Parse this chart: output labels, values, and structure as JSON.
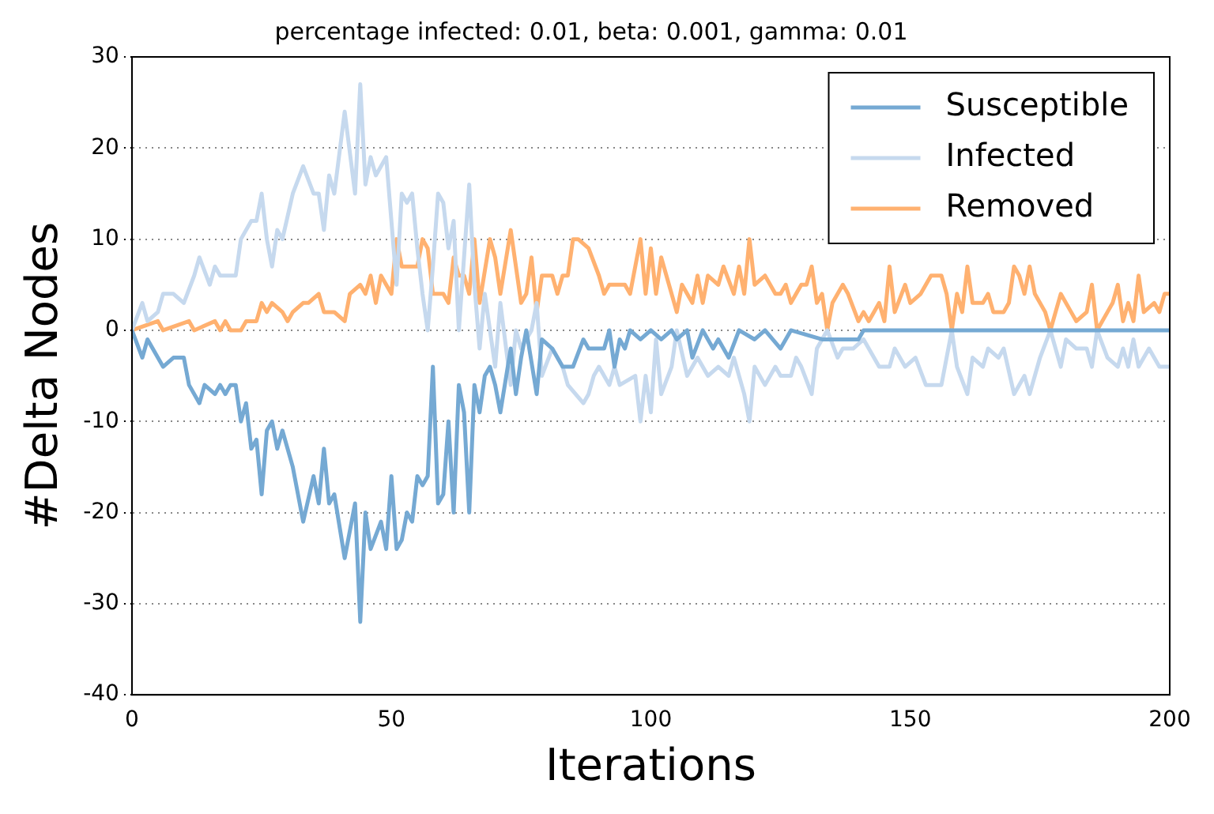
{
  "chart_data": {
    "type": "line",
    "title": "percentage infected: 0.01, beta: 0.001, gamma: 0.01",
    "xlabel": "Iterations",
    "ylabel": "#Delta Nodes",
    "xlim": [
      0,
      200
    ],
    "xticks": [
      0,
      50,
      100,
      150,
      200
    ],
    "ylim": [
      -40,
      30
    ],
    "yticks": [
      -40,
      -30,
      -20,
      -10,
      0,
      10,
      20,
      30
    ],
    "grid": "y",
    "legend": "top right",
    "series": [
      {
        "name": "Susceptible",
        "color": "#75a9d3",
        "x": [
          0,
          2,
          3,
          6,
          8,
          10,
          11,
          13,
          14,
          16,
          17,
          18,
          19,
          20,
          21,
          22,
          23,
          24,
          25,
          26,
          27,
          28,
          29,
          31,
          33,
          35,
          36,
          37,
          38,
          39,
          41,
          43,
          44,
          45,
          46,
          48,
          49,
          50,
          51,
          52,
          53,
          54,
          55,
          56,
          57,
          58,
          59,
          60,
          61,
          62,
          63,
          64,
          65,
          66,
          67,
          68,
          69,
          70,
          71,
          73,
          74,
          75,
          76,
          78,
          79,
          81,
          83,
          85,
          87,
          88,
          91,
          92,
          93,
          94,
          95,
          96,
          98,
          100,
          102,
          104,
          105,
          107,
          108,
          110,
          112,
          113,
          115,
          117,
          120,
          122,
          125,
          127,
          133,
          136,
          140,
          141,
          150,
          160,
          170,
          180,
          190,
          200
        ],
        "values": [
          0,
          -3,
          -1,
          -4,
          -3,
          -3,
          -6,
          -8,
          -6,
          -7,
          -6,
          -7,
          -6,
          -6,
          -10,
          -8,
          -13,
          -12,
          -18,
          -11,
          -10,
          -13,
          -11,
          -15,
          -21,
          -16,
          -19,
          -13,
          -19,
          -18,
          -25,
          -19,
          -32,
          -20,
          -24,
          -21,
          -24,
          -16,
          -24,
          -23,
          -20,
          -21,
          -16,
          -17,
          -16,
          -4,
          -19,
          -18,
          -10,
          -20,
          -6,
          -9,
          -20,
          -6,
          -9,
          -5,
          -4,
          -6,
          -9,
          -2,
          -7,
          -3,
          0,
          -7,
          -1,
          -2,
          -4,
          -4,
          -1,
          -2,
          -2,
          0,
          -4,
          -1,
          -2,
          0,
          -1,
          0,
          -1,
          0,
          -1,
          0,
          -3,
          0,
          -2,
          -1,
          -3,
          0,
          -1,
          0,
          -2,
          0,
          -1,
          -1,
          -1,
          0,
          0,
          0,
          0,
          0,
          0,
          0
        ]
      },
      {
        "name": "Infected",
        "color": "#c6d9ee",
        "x": [
          0,
          2,
          3,
          5,
          6,
          8,
          10,
          12,
          13,
          15,
          16,
          17,
          20,
          21,
          23,
          24,
          25,
          26,
          27,
          28,
          29,
          31,
          33,
          35,
          36,
          37,
          38,
          39,
          41,
          43,
          44,
          45,
          46,
          47,
          49,
          50,
          51,
          52,
          53,
          54,
          55,
          56,
          57,
          58,
          59,
          60,
          61,
          62,
          63,
          65,
          66,
          67,
          68,
          70,
          71,
          73,
          74,
          75,
          77,
          78,
          79,
          81,
          83,
          84,
          87,
          88,
          89,
          90,
          92,
          93,
          94,
          97,
          98,
          99,
          100,
          101,
          102,
          104,
          105,
          107,
          109,
          110,
          111,
          113,
          115,
          116,
          118,
          119,
          120,
          122,
          124,
          125,
          127,
          128,
          129,
          131,
          132,
          134,
          136,
          137,
          139,
          141,
          142,
          144,
          146,
          147,
          149,
          151,
          153,
          154,
          156,
          158,
          159,
          161,
          162,
          164,
          165,
          167,
          168,
          170,
          172,
          173,
          175,
          177,
          179,
          180,
          182,
          184,
          185,
          186,
          188,
          190,
          191,
          192,
          193,
          194,
          196,
          198,
          200
        ],
        "values": [
          0,
          3,
          1,
          2,
          4,
          4,
          3,
          6,
          8,
          5,
          7,
          6,
          6,
          10,
          12,
          12,
          15,
          10,
          7,
          11,
          10,
          15,
          18,
          15,
          15,
          11,
          17,
          15,
          24,
          15,
          27,
          16,
          19,
          17,
          19,
          12,
          5,
          15,
          14,
          15,
          9,
          4,
          0,
          7,
          15,
          14,
          9,
          12,
          0,
          16,
          5,
          -2,
          4,
          -4,
          3,
          -6,
          0,
          -2,
          0,
          3,
          -5,
          -2,
          -4,
          -6,
          -8,
          -7,
          -5,
          -4,
          -6,
          -4,
          -6,
          -5,
          -10,
          -5,
          -9,
          -1,
          -7,
          -4,
          0,
          -5,
          -3,
          -4,
          -5,
          -4,
          -5,
          -3,
          -7,
          -10,
          -4,
          -6,
          -4,
          -5,
          -5,
          -3,
          -4,
          -7,
          -2,
          0,
          -3,
          -2,
          -2,
          -1,
          -2,
          -4,
          -4,
          -2,
          -4,
          -3,
          -6,
          -6,
          -6,
          0,
          -4,
          -7,
          -3,
          -4,
          -2,
          -3,
          -2,
          -7,
          -5,
          -7,
          -3,
          0,
          -4,
          -1,
          -2,
          -2,
          -4,
          0,
          -3,
          -4,
          -2,
          -4,
          -1,
          -4,
          -2,
          -4,
          -4
        ]
      },
      {
        "name": "Removed",
        "color": "#ffb170",
        "x": [
          0,
          5,
          6,
          11,
          12,
          16,
          17,
          18,
          19,
          21,
          22,
          24,
          25,
          26,
          27,
          29,
          30,
          31,
          33,
          34,
          36,
          37,
          39,
          41,
          42,
          44,
          45,
          46,
          47,
          48,
          50,
          51,
          52,
          55,
          56,
          57,
          58,
          60,
          61,
          62,
          63,
          64,
          65,
          66,
          67,
          69,
          70,
          71,
          73,
          75,
          76,
          77,
          78,
          79,
          81,
          82,
          83,
          84,
          85,
          86,
          88,
          90,
          91,
          92,
          94,
          95,
          96,
          98,
          99,
          100,
          101,
          102,
          103,
          105,
          106,
          108,
          109,
          110,
          111,
          113,
          114,
          116,
          117,
          118,
          119,
          120,
          122,
          124,
          125,
          126,
          127,
          129,
          130,
          131,
          132,
          133,
          134,
          135,
          137,
          138,
          140,
          141,
          142,
          144,
          145,
          146,
          147,
          149,
          150,
          152,
          154,
          156,
          157,
          158,
          159,
          160,
          161,
          162,
          164,
          165,
          166,
          168,
          169,
          170,
          171,
          172,
          173,
          174,
          176,
          177,
          178,
          179,
          181,
          182,
          184,
          185,
          186,
          188,
          189,
          190,
          191,
          192,
          193,
          194,
          195,
          197,
          198,
          199,
          200
        ],
        "values": [
          0,
          1,
          0,
          1,
          0,
          1,
          0,
          1,
          0,
          0,
          1,
          1,
          3,
          2,
          3,
          2,
          1,
          2,
          3,
          3,
          4,
          2,
          2,
          1,
          4,
          5,
          4,
          6,
          3,
          6,
          4,
          10,
          7,
          7,
          10,
          9,
          4,
          4,
          3,
          8,
          6,
          6,
          4,
          10,
          3,
          10,
          8,
          4,
          11,
          3,
          4,
          8,
          2,
          6,
          6,
          4,
          6,
          6,
          10,
          10,
          9,
          6,
          4,
          5,
          5,
          5,
          4,
          10,
          4,
          9,
          4,
          8,
          6,
          2,
          5,
          3,
          6,
          3,
          6,
          5,
          7,
          4,
          7,
          4,
          10,
          5,
          6,
          4,
          4,
          5,
          3,
          5,
          5,
          7,
          3,
          4,
          0,
          3,
          5,
          4,
          1,
          2,
          1,
          3,
          1,
          7,
          2,
          5,
          3,
          4,
          6,
          6,
          4,
          0,
          4,
          2,
          7,
          3,
          3,
          4,
          2,
          2,
          3,
          7,
          6,
          4,
          7,
          4,
          2,
          0,
          2,
          4,
          2,
          1,
          2,
          5,
          0,
          2,
          3,
          5,
          1,
          3,
          1,
          6,
          2,
          3,
          2,
          4,
          4
        ]
      }
    ]
  }
}
